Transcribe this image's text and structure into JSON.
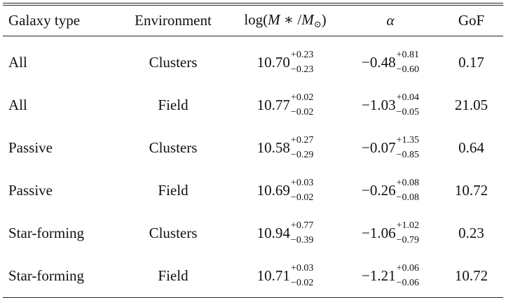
{
  "table": {
    "headers": {
      "galaxy_type": "Galaxy type",
      "environment": "Environment",
      "logm_prefix": "log(",
      "logm_M": "M",
      "logm_mid": " ∗ /",
      "logm_Msun": "M",
      "logm_sun": "⊙",
      "logm_suffix": ")",
      "alpha": "α",
      "gof": "GoF"
    },
    "rows": [
      {
        "type": "All",
        "env": "Clusters",
        "logm": "10.70",
        "logm_up": "+0.23",
        "logm_dn": "−0.23",
        "alpha": "−0.48",
        "alpha_up": "+0.81",
        "alpha_dn": "−0.60",
        "gof": "0.17"
      },
      {
        "type": "All",
        "env": "Field",
        "logm": "10.77",
        "logm_up": "+0.02",
        "logm_dn": "−0.02",
        "alpha": "−1.03",
        "alpha_up": "+0.04",
        "alpha_dn": "−0.05",
        "gof": "21.05"
      },
      {
        "type": "Passive",
        "env": "Clusters",
        "logm": "10.58",
        "logm_up": "+0.27",
        "logm_dn": "−0.29",
        "alpha": "−0.07",
        "alpha_up": "+1.35",
        "alpha_dn": "−0.85",
        "gof": "0.64"
      },
      {
        "type": "Passive",
        "env": "Field",
        "logm": "10.69",
        "logm_up": "+0.03",
        "logm_dn": "−0.02",
        "alpha": "−0.26",
        "alpha_up": "+0.08",
        "alpha_dn": "−0.08",
        "gof": "10.72"
      },
      {
        "type": "Star-forming",
        "env": "Clusters",
        "logm": "10.94",
        "logm_up": "+0.77",
        "logm_dn": "−0.39",
        "alpha": "−1.06",
        "alpha_up": "+1.02",
        "alpha_dn": "−0.79",
        "gof": "0.23"
      },
      {
        "type": "Star-forming",
        "env": "Field",
        "logm": "10.71",
        "logm_up": "+0.03",
        "logm_dn": "−0.02",
        "alpha": "−1.21",
        "alpha_up": "+0.06",
        "alpha_dn": "−0.06",
        "gof": "10.72"
      }
    ]
  }
}
